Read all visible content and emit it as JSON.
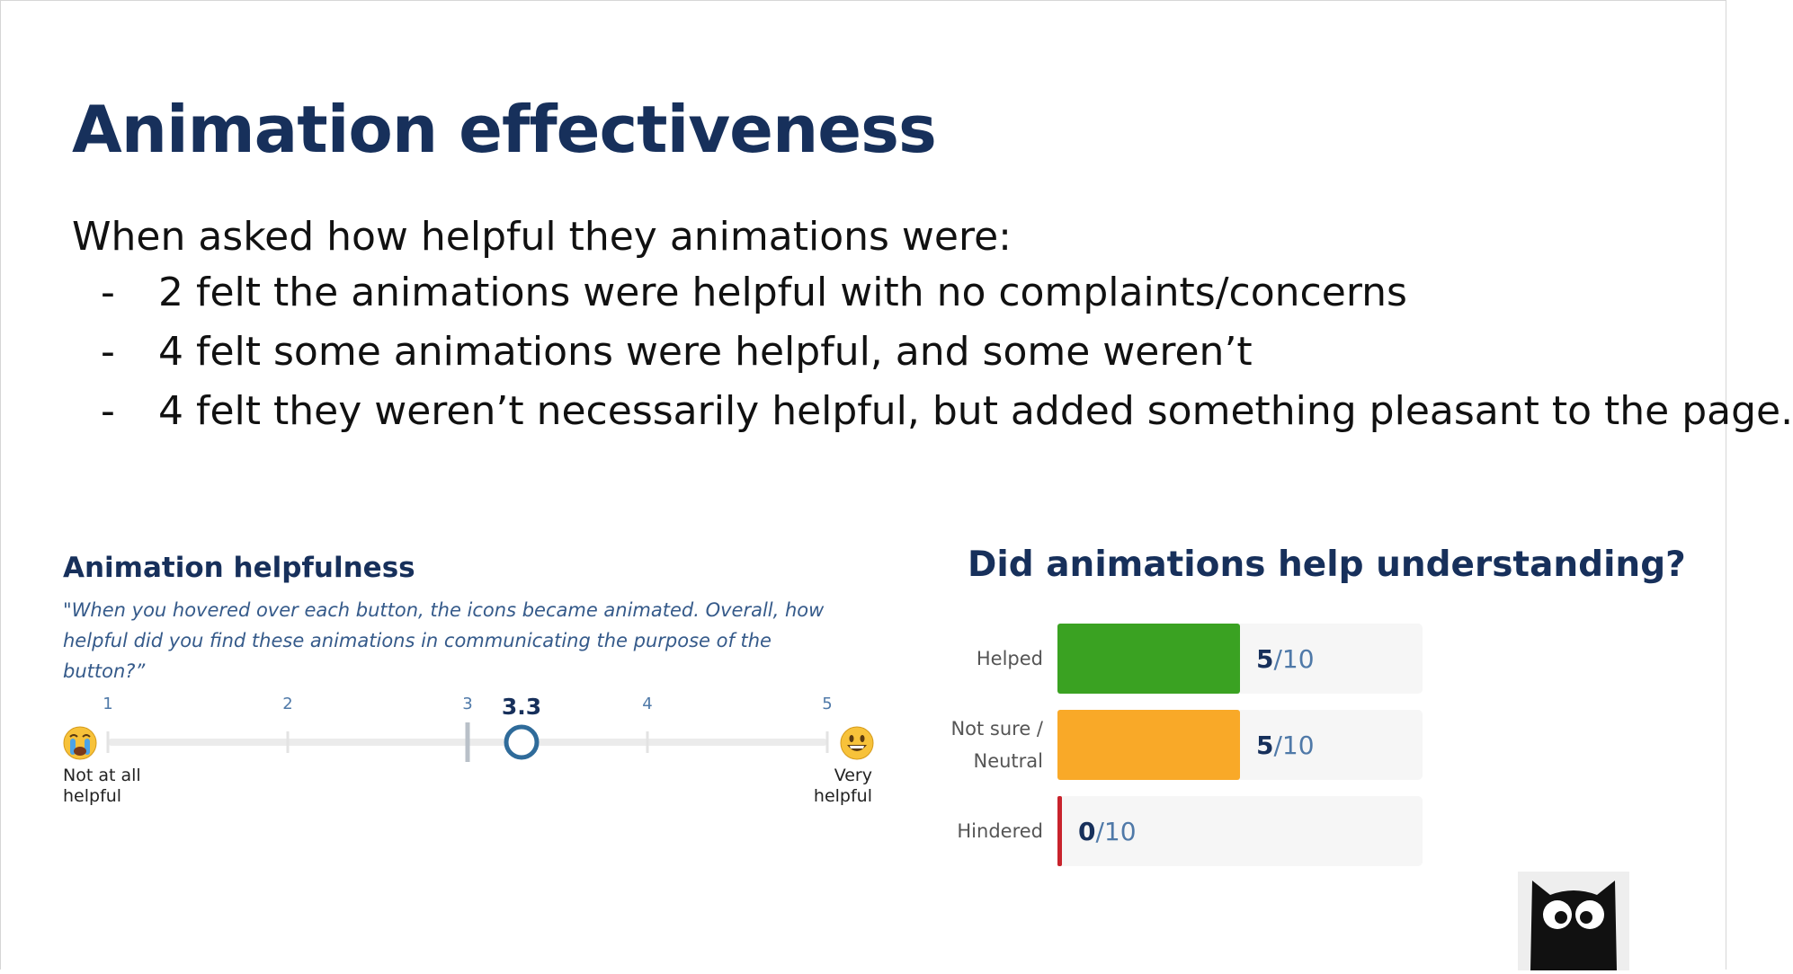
{
  "slide": {
    "title": "Animation effectiveness",
    "intro": "When asked how helpful they animations were:",
    "bullets": [
      "2 felt the animations were helpful with no complaints/concerns",
      "4 felt some animations were helpful, and some weren’t",
      "4 felt they weren’t necessarily helpful, but added something pleasant to the page."
    ],
    "bullet_marker": "-"
  },
  "rating_scale": {
    "title": "Animation helpfulness",
    "question": "\"When you hovered over each button, the icons became animated. Overall, how helpful did you find these animations in communicating the purpose of the button?”",
    "ticks": [
      "1",
      "2",
      "3",
      "4",
      "5"
    ],
    "average": 3.3,
    "average_label": "3.3",
    "min_label_line1": "Not at all",
    "min_label_line2": "helpful",
    "max_label_line1": "Very",
    "max_label_line2": "helpful",
    "min_icon": "crying-face-icon",
    "max_icon": "smiling-face-icon"
  },
  "chart_data": {
    "type": "bar",
    "orientation": "horizontal",
    "title": "Did animations help understanding?",
    "categories": [
      "Helped",
      "Not sure / Neutral",
      "Hindered"
    ],
    "values": [
      5,
      5,
      0
    ],
    "max": 10,
    "value_labels": [
      {
        "num": "5",
        "den": "/10"
      },
      {
        "num": "5",
        "den": "/10"
      },
      {
        "num": "0",
        "den": "/10"
      }
    ],
    "colors": [
      "#3aa222",
      "#f9a928",
      "#c8232c"
    ],
    "track_color": "#f6f6f6"
  },
  "colors": {
    "title": "#17305b",
    "accent": "#355a8a"
  },
  "logo": {
    "icon": "owl-logo-icon"
  }
}
